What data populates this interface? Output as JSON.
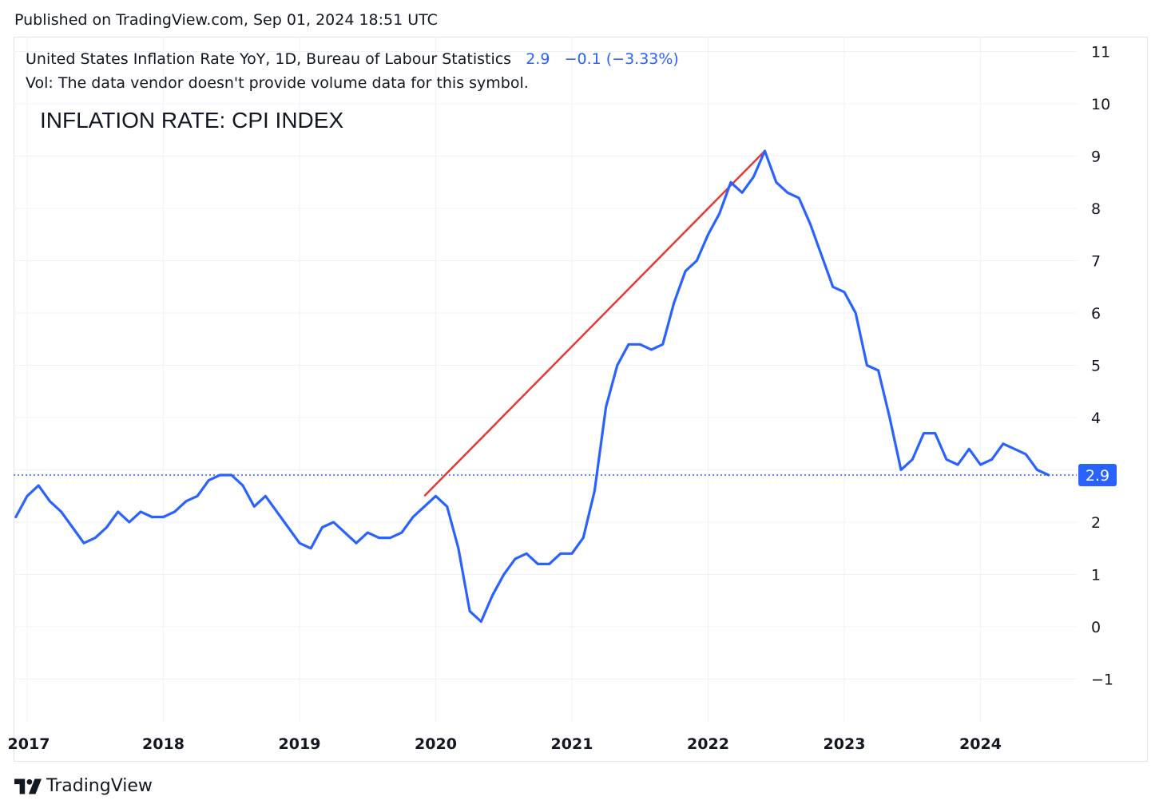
{
  "header": {
    "published": "Published on TradingView.com, Sep 01, 2024 18:51 UTC"
  },
  "legend": {
    "symbol": "United States Inflation Rate YoY, 1D, Bureau of Labour Statistics",
    "value": "2.9",
    "change": "−0.1 (−3.33%)",
    "volume_note": "Vol: The data vendor doesn't provide volume data for this symbol."
  },
  "annotation": "INFLATION RATE: CPI INDEX",
  "price_tag": "2.9",
  "footer": {
    "brand": "TradingView"
  },
  "colors": {
    "series": "#2962ff",
    "trendline": "#e53935",
    "grid": "#f0f3fa",
    "axis_text": "#131722"
  },
  "chart_data": {
    "type": "line",
    "title": "INFLATION RATE: CPI INDEX",
    "xlabel": "",
    "ylabel": "",
    "ylim": [
      -1.5,
      11.3
    ],
    "y_ticks": [
      -1,
      0,
      1,
      2,
      3,
      4,
      5,
      6,
      7,
      8,
      9,
      10,
      11
    ],
    "y_tick_labels": [
      "−1",
      "0",
      "1",
      "2",
      "3",
      "4",
      "5",
      "6",
      "7",
      "8",
      "9",
      "10",
      "11"
    ],
    "x_range": [
      "2016-12",
      "2024-12"
    ],
    "x_ticks": [
      "2017",
      "2018",
      "2019",
      "2020",
      "2021",
      "2022",
      "2023",
      "2024"
    ],
    "last_value": 2.9,
    "series": [
      {
        "name": "United States Inflation Rate YoY",
        "start": "2016-12",
        "frequency": "monthly",
        "values": [
          2.1,
          2.5,
          2.7,
          2.4,
          2.2,
          1.9,
          1.6,
          1.7,
          1.9,
          2.2,
          2.0,
          2.2,
          2.1,
          2.1,
          2.2,
          2.4,
          2.5,
          2.8,
          2.9,
          2.9,
          2.7,
          2.3,
          2.5,
          2.2,
          1.9,
          1.6,
          1.5,
          1.9,
          2.0,
          1.8,
          1.6,
          1.8,
          1.7,
          1.7,
          1.8,
          2.1,
          2.3,
          2.5,
          2.3,
          1.5,
          0.3,
          0.1,
          0.6,
          1.0,
          1.3,
          1.4,
          1.2,
          1.2,
          1.4,
          1.4,
          1.7,
          2.6,
          4.2,
          5.0,
          5.4,
          5.4,
          5.3,
          5.4,
          6.2,
          6.8,
          7.0,
          7.5,
          7.9,
          8.5,
          8.3,
          8.6,
          9.1,
          8.5,
          8.3,
          8.2,
          7.7,
          7.1,
          6.5,
          6.4,
          6.0,
          5.0,
          4.9,
          4.0,
          3.0,
          3.2,
          3.7,
          3.7,
          3.2,
          3.1,
          3.4,
          3.1,
          3.2,
          3.5,
          3.4,
          3.3,
          3.0,
          2.9
        ]
      },
      {
        "name": "Trend line",
        "type": "segment",
        "points": [
          [
            "2019-12",
            2.5
          ],
          [
            "2022-06",
            9.1
          ]
        ]
      }
    ]
  }
}
